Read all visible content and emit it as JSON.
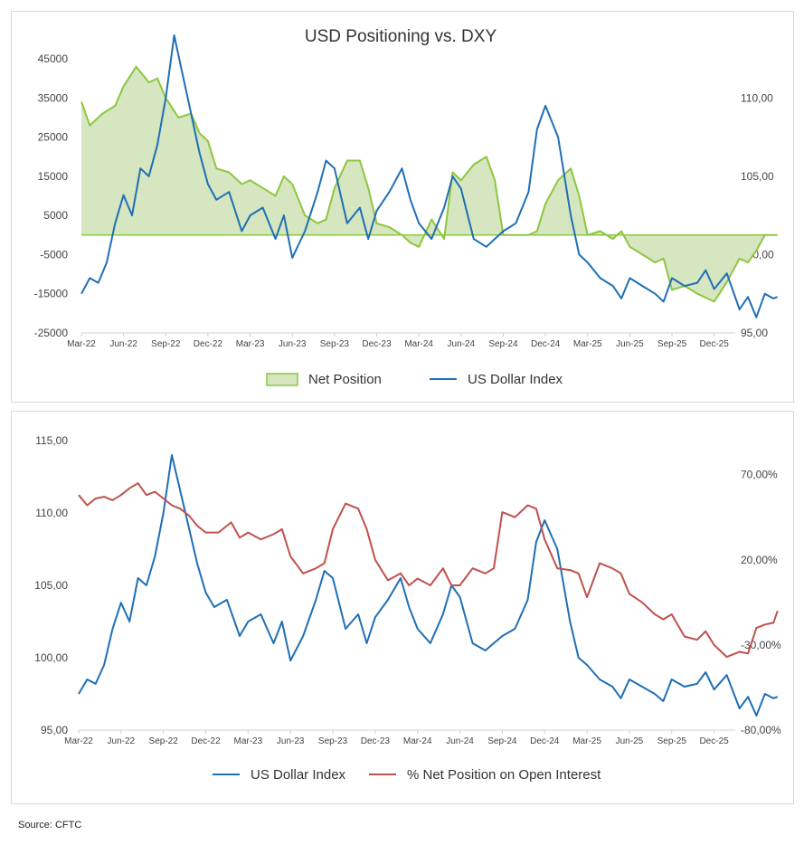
{
  "source": "Source: CFTC",
  "colors": {
    "green_line": "#8dc63f",
    "green_fill": "#d5e6c0",
    "blue": "#1f6fb5",
    "red": "#c0504d",
    "axis": "#d0d0d0"
  },
  "chart_data": [
    {
      "type": "area",
      "title": "USD Positioning vs. DXY",
      "x_ticks": [
        "Mar-22",
        "Jun-22",
        "Sep-22",
        "Dec-22",
        "Mar-23",
        "Jun-23",
        "Sep-23",
        "Dec-23",
        "Mar-24",
        "Jun-24",
        "Sep-24",
        "Dec-24",
        "Mar-25",
        "Jun-25",
        "Sep-25",
        "Dec-25"
      ],
      "y_left_ticks": [
        "45000",
        "35000",
        "25000",
        "15000",
        "5000",
        "-5000",
        "-15000",
        "-25000"
      ],
      "y_left_lim": [
        -25000,
        45000
      ],
      "y_right_ticks": [
        "110,00",
        "105,00",
        "100,00",
        "95,00"
      ],
      "y_right_lim": [
        95,
        112.5
      ],
      "legend": [
        "Net Position",
        "US Dollar Index"
      ],
      "series": [
        {
          "name": "Net Position",
          "axis": "left",
          "kind": "area",
          "x": [
            0,
            0.2,
            0.5,
            0.8,
            1.0,
            1.3,
            1.6,
            1.8,
            2.0,
            2.3,
            2.6,
            2.8,
            3.0,
            3.2,
            3.5,
            3.8,
            4.0,
            4.3,
            4.6,
            4.8,
            5.0,
            5.3,
            5.6,
            5.8,
            6.0,
            6.3,
            6.6,
            6.8,
            7.0,
            7.3,
            7.6,
            7.8,
            8.0,
            8.3,
            8.6,
            8.8,
            9.0,
            9.3,
            9.6,
            9.8,
            10.0,
            10.3,
            10.6,
            10.8,
            11.0,
            11.3,
            11.6,
            11.8,
            12.0,
            12.3,
            12.6,
            12.8,
            13.0,
            13.3,
            13.6,
            13.8,
            14.0,
            14.3,
            14.6,
            14.8,
            15.0,
            15.3,
            15.6,
            15.8,
            16.0,
            16.2,
            16.5
          ],
          "values": [
            34000,
            28000,
            31000,
            33000,
            38000,
            43000,
            39000,
            40000,
            35000,
            30000,
            31000,
            26000,
            24000,
            17000,
            16000,
            13000,
            14000,
            12000,
            10000,
            15000,
            13000,
            5000,
            3000,
            4000,
            12000,
            19000,
            19000,
            12000,
            3000,
            2000,
            0,
            -2000,
            -3000,
            4000,
            -1000,
            16000,
            14000,
            18000,
            20000,
            14000,
            0,
            0,
            0,
            1000,
            8000,
            14000,
            17000,
            10000,
            0,
            1000,
            -1000,
            1000,
            -3000,
            -5000,
            -7000,
            -6000,
            -14000,
            -13000,
            -15000,
            -16000,
            -17000,
            -12000,
            -6000,
            -7000,
            -4000,
            0,
            0
          ]
        },
        {
          "name": "US Dollar Index",
          "axis": "right",
          "kind": "line",
          "x": [
            0,
            0.2,
            0.4,
            0.6,
            0.8,
            1.0,
            1.2,
            1.4,
            1.6,
            1.8,
            2.0,
            2.2,
            2.4,
            2.6,
            2.8,
            3.0,
            3.2,
            3.5,
            3.8,
            4.0,
            4.3,
            4.6,
            4.8,
            5.0,
            5.3,
            5.6,
            5.8,
            6.0,
            6.3,
            6.6,
            6.8,
            7.0,
            7.3,
            7.6,
            7.8,
            8.0,
            8.3,
            8.6,
            8.8,
            9.0,
            9.3,
            9.6,
            9.8,
            10.0,
            10.3,
            10.6,
            10.8,
            11.0,
            11.3,
            11.6,
            11.8,
            12.0,
            12.3,
            12.6,
            12.8,
            13.0,
            13.3,
            13.6,
            13.8,
            14.0,
            14.3,
            14.6,
            14.8,
            15.0,
            15.3,
            15.6,
            15.8,
            16.0,
            16.2,
            16.4,
            16.5
          ],
          "values": [
            97.5,
            98.5,
            98.2,
            99.5,
            102,
            103.8,
            102.5,
            105.5,
            105,
            107,
            110,
            114,
            111.5,
            109,
            106.5,
            104.5,
            103.5,
            104,
            101.5,
            102.5,
            103,
            101,
            102.5,
            99.8,
            101.5,
            104,
            106,
            105.5,
            102,
            103,
            101,
            102.8,
            104,
            105.5,
            103.5,
            102,
            101,
            103,
            105,
            104.2,
            101,
            100.5,
            101,
            101.5,
            102,
            104,
            108,
            109.5,
            107.5,
            102.5,
            100,
            99.5,
            98.5,
            98,
            97.2,
            98.5,
            98,
            97.5,
            97,
            98.5,
            98,
            98.2,
            99,
            97.8,
            98.8,
            96.5,
            97.3,
            96,
            97.5,
            97.2,
            97.3
          ]
        }
      ]
    },
    {
      "type": "line",
      "title": "",
      "x_ticks": [
        "Mar-22",
        "Jun-22",
        "Sep-22",
        "Dec-22",
        "Mar-23",
        "Jun-23",
        "Sep-23",
        "Dec-23",
        "Mar-24",
        "Jun-24",
        "Sep-24",
        "Dec-24",
        "Mar-25",
        "Jun-25",
        "Sep-25",
        "Dec-25"
      ],
      "y_left_ticks": [
        "115,00",
        "110,00",
        "105,00",
        "100,00",
        "95,00"
      ],
      "y_left_lim": [
        95,
        115
      ],
      "y_right_ticks": [
        "70,00%",
        "20,00%",
        "-30,00%",
        "-80,00%"
      ],
      "y_right_lim": [
        -80,
        90
      ],
      "legend": [
        "US Dollar Index",
        "% Net Position on Open Interest"
      ],
      "series": [
        {
          "name": "US Dollar Index",
          "axis": "left",
          "kind": "line",
          "x": [
            0,
            0.2,
            0.4,
            0.6,
            0.8,
            1.0,
            1.2,
            1.4,
            1.6,
            1.8,
            2.0,
            2.2,
            2.4,
            2.6,
            2.8,
            3.0,
            3.2,
            3.5,
            3.8,
            4.0,
            4.3,
            4.6,
            4.8,
            5.0,
            5.3,
            5.6,
            5.8,
            6.0,
            6.3,
            6.6,
            6.8,
            7.0,
            7.3,
            7.6,
            7.8,
            8.0,
            8.3,
            8.6,
            8.8,
            9.0,
            9.3,
            9.6,
            9.8,
            10.0,
            10.3,
            10.6,
            10.8,
            11.0,
            11.3,
            11.6,
            11.8,
            12.0,
            12.3,
            12.6,
            12.8,
            13.0,
            13.3,
            13.6,
            13.8,
            14.0,
            14.3,
            14.6,
            14.8,
            15.0,
            15.3,
            15.6,
            15.8,
            16.0,
            16.2,
            16.4,
            16.5
          ],
          "values": [
            97.5,
            98.5,
            98.2,
            99.5,
            102,
            103.8,
            102.5,
            105.5,
            105,
            107,
            110,
            114,
            111.5,
            109,
            106.5,
            104.5,
            103.5,
            104,
            101.5,
            102.5,
            103,
            101,
            102.5,
            99.8,
            101.5,
            104,
            106,
            105.5,
            102,
            103,
            101,
            102.8,
            104,
            105.5,
            103.5,
            102,
            101,
            103,
            105,
            104.2,
            101,
            100.5,
            101,
            101.5,
            102,
            104,
            108,
            109.5,
            107.5,
            102.5,
            100,
            99.5,
            98.5,
            98,
            97.2,
            98.5,
            98,
            97.5,
            97,
            98.5,
            98,
            98.2,
            99,
            97.8,
            98.8,
            96.5,
            97.3,
            96,
            97.5,
            97.2,
            97.3
          ]
        },
        {
          "name": "% Net Position on Open Interest",
          "axis": "right",
          "kind": "line",
          "x": [
            0,
            0.2,
            0.4,
            0.6,
            0.8,
            1.0,
            1.2,
            1.4,
            1.6,
            1.8,
            2.0,
            2.2,
            2.4,
            2.6,
            2.8,
            3.0,
            3.3,
            3.6,
            3.8,
            4.0,
            4.3,
            4.6,
            4.8,
            5.0,
            5.3,
            5.6,
            5.8,
            6.0,
            6.3,
            6.6,
            6.8,
            7.0,
            7.3,
            7.6,
            7.8,
            8.0,
            8.3,
            8.6,
            8.8,
            9.0,
            9.3,
            9.6,
            9.8,
            10.0,
            10.3,
            10.6,
            10.8,
            11.0,
            11.3,
            11.6,
            11.8,
            12.0,
            12.3,
            12.6,
            12.8,
            13.0,
            13.3,
            13.6,
            13.8,
            14.0,
            14.3,
            14.6,
            14.8,
            15.0,
            15.3,
            15.6,
            15.8,
            16.0,
            16.2,
            16.4,
            16.5
          ],
          "values": [
            58,
            52,
            56,
            57,
            55,
            58,
            62,
            65,
            58,
            60,
            56,
            52,
            50,
            46,
            40,
            36,
            36,
            42,
            33,
            36,
            32,
            35,
            38,
            22,
            12,
            15,
            18,
            38,
            53,
            50,
            38,
            20,
            8,
            12,
            5,
            9,
            5,
            15,
            5,
            5,
            15,
            12,
            15,
            48,
            45,
            52,
            50,
            32,
            15,
            14,
            12,
            -2,
            18,
            15,
            12,
            0,
            -5,
            -12,
            -15,
            -12,
            -25,
            -27,
            -22,
            -30,
            -37,
            -34,
            -35,
            -20,
            -18,
            -17,
            -10
          ]
        }
      ]
    }
  ]
}
